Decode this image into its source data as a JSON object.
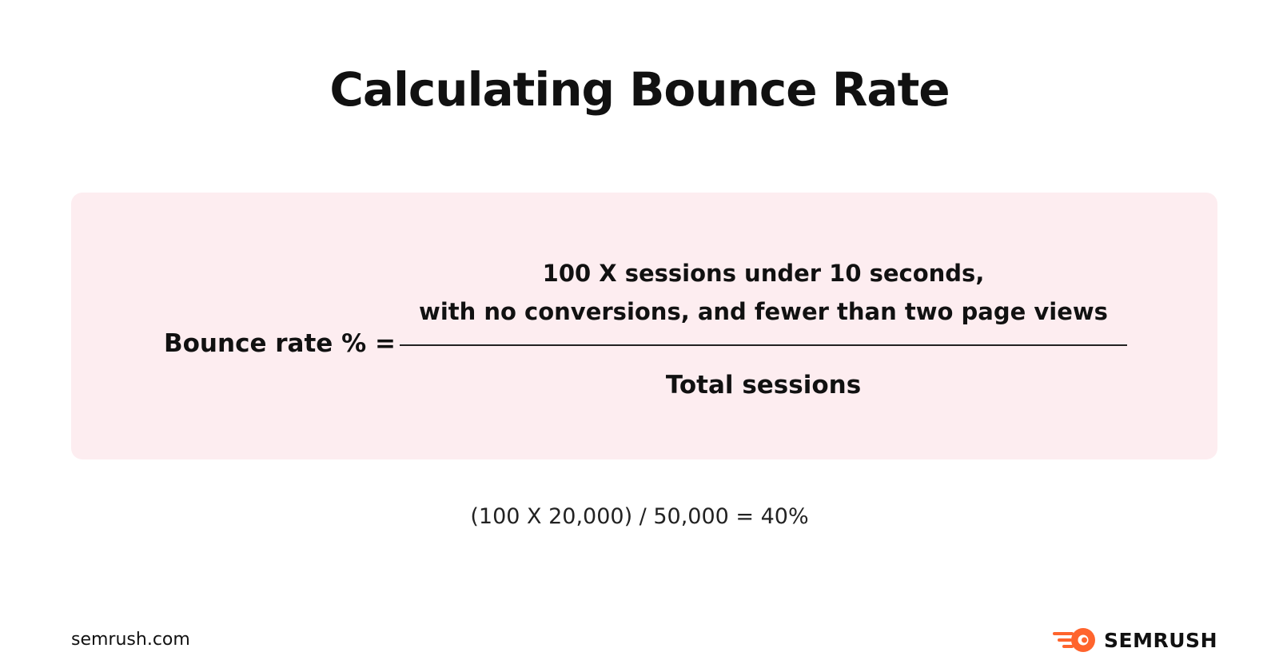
{
  "title": "Calculating Bounce Rate",
  "formula": {
    "lhs": "Bounce rate % =",
    "numerator_line1": "100 X sessions under 10 seconds,",
    "numerator_line2": "with no conversions, and fewer than two page views",
    "denominator": "Total sessions"
  },
  "example": "(100 X 20,000) / 50,000 = 40%",
  "footer": {
    "site": "semrush.com",
    "brand": "SEMRUSH",
    "brand_icon": "semrush-fireball-icon"
  },
  "colors": {
    "box_background": "#fdedf0",
    "brand_orange": "#ff642d",
    "text": "#111111"
  }
}
